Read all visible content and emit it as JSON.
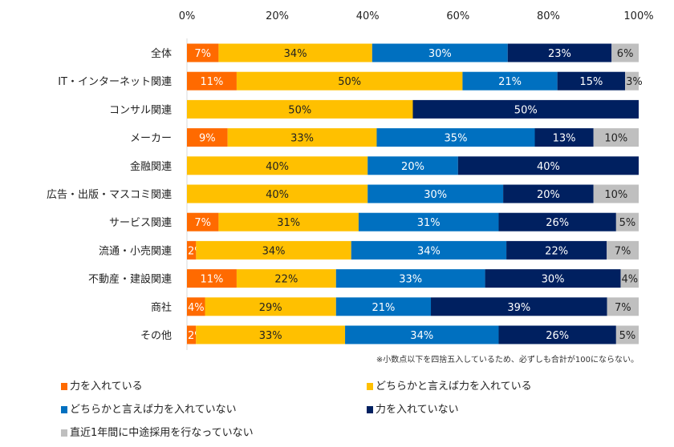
{
  "chart_data": {
    "type": "bar",
    "orientation": "horizontal",
    "stacked": true,
    "xlim": [
      0,
      100
    ],
    "x_ticks": [
      "0%",
      "20%",
      "40%",
      "60%",
      "80%",
      "100%"
    ],
    "grid": false,
    "legend_position": "bottom",
    "categories": [
      "全体",
      "IT・インターネット関連",
      "コンサル関連",
      "メーカー",
      "金融関連",
      "広告・出版・マスコミ関連",
      "サービス関連",
      "流通・小売関連",
      "不動産・建設関連",
      "商社",
      "その他"
    ],
    "series": [
      {
        "name": "力を入れている",
        "color": "#FF6A00",
        "label_color": "#ffffff",
        "values": [
          7,
          11,
          0,
          9,
          0,
          0,
          7,
          2,
          11,
          4,
          2
        ]
      },
      {
        "name": "どちらかと言えば力を入れている",
        "color": "#FFC000",
        "label_color": "#222222",
        "values": [
          34,
          50,
          50,
          33,
          40,
          40,
          31,
          34,
          22,
          29,
          33
        ]
      },
      {
        "name": "どちらかと言えば力を入れていない",
        "color": "#0070C0",
        "label_color": "#ffffff",
        "values": [
          30,
          21,
          0,
          35,
          20,
          30,
          31,
          34,
          33,
          21,
          34
        ]
      },
      {
        "name": "力を入れていない",
        "color": "#002060",
        "label_color": "#ffffff",
        "values": [
          23,
          15,
          50,
          13,
          40,
          20,
          26,
          22,
          30,
          39,
          26
        ]
      },
      {
        "name": "直近1年間に中途採用を行なっていない",
        "color": "#BFBFBF",
        "label_color": "#222222",
        "values": [
          6,
          3,
          0,
          10,
          0,
          10,
          5,
          7,
          4,
          7,
          5
        ]
      }
    ],
    "value_suffix": "%",
    "note": "※小数点以下を四捨五入しているため、必ずしも合計が100にならない。"
  }
}
